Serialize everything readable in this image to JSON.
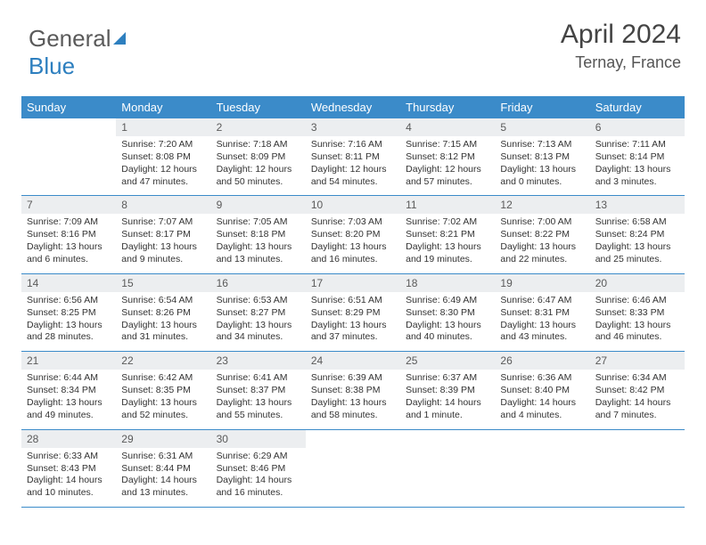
{
  "brand": {
    "part1": "General",
    "part2": "Blue"
  },
  "title": {
    "month_year": "April 2024",
    "location": "Ternay, France"
  },
  "style": {
    "accent_color": "#3b8bc9",
    "daynum_bg": "#eceef0",
    "text_color": "#333333",
    "background": "#ffffff",
    "head_fontsize": 13,
    "body_fontsize": 10.5
  },
  "day_headers": [
    "Sunday",
    "Monday",
    "Tuesday",
    "Wednesday",
    "Thursday",
    "Friday",
    "Saturday"
  ],
  "weeks": [
    {
      "nums": [
        "",
        "1",
        "2",
        "3",
        "4",
        "5",
        "6"
      ],
      "cells": [
        null,
        {
          "sunrise": "Sunrise: 7:20 AM",
          "sunset": "Sunset: 8:08 PM",
          "day1": "Daylight: 12 hours",
          "day2": "and 47 minutes."
        },
        {
          "sunrise": "Sunrise: 7:18 AM",
          "sunset": "Sunset: 8:09 PM",
          "day1": "Daylight: 12 hours",
          "day2": "and 50 minutes."
        },
        {
          "sunrise": "Sunrise: 7:16 AM",
          "sunset": "Sunset: 8:11 PM",
          "day1": "Daylight: 12 hours",
          "day2": "and 54 minutes."
        },
        {
          "sunrise": "Sunrise: 7:15 AM",
          "sunset": "Sunset: 8:12 PM",
          "day1": "Daylight: 12 hours",
          "day2": "and 57 minutes."
        },
        {
          "sunrise": "Sunrise: 7:13 AM",
          "sunset": "Sunset: 8:13 PM",
          "day1": "Daylight: 13 hours",
          "day2": "and 0 minutes."
        },
        {
          "sunrise": "Sunrise: 7:11 AM",
          "sunset": "Sunset: 8:14 PM",
          "day1": "Daylight: 13 hours",
          "day2": "and 3 minutes."
        }
      ]
    },
    {
      "nums": [
        "7",
        "8",
        "9",
        "10",
        "11",
        "12",
        "13"
      ],
      "cells": [
        {
          "sunrise": "Sunrise: 7:09 AM",
          "sunset": "Sunset: 8:16 PM",
          "day1": "Daylight: 13 hours",
          "day2": "and 6 minutes."
        },
        {
          "sunrise": "Sunrise: 7:07 AM",
          "sunset": "Sunset: 8:17 PM",
          "day1": "Daylight: 13 hours",
          "day2": "and 9 minutes."
        },
        {
          "sunrise": "Sunrise: 7:05 AM",
          "sunset": "Sunset: 8:18 PM",
          "day1": "Daylight: 13 hours",
          "day2": "and 13 minutes."
        },
        {
          "sunrise": "Sunrise: 7:03 AM",
          "sunset": "Sunset: 8:20 PM",
          "day1": "Daylight: 13 hours",
          "day2": "and 16 minutes."
        },
        {
          "sunrise": "Sunrise: 7:02 AM",
          "sunset": "Sunset: 8:21 PM",
          "day1": "Daylight: 13 hours",
          "day2": "and 19 minutes."
        },
        {
          "sunrise": "Sunrise: 7:00 AM",
          "sunset": "Sunset: 8:22 PM",
          "day1": "Daylight: 13 hours",
          "day2": "and 22 minutes."
        },
        {
          "sunrise": "Sunrise: 6:58 AM",
          "sunset": "Sunset: 8:24 PM",
          "day1": "Daylight: 13 hours",
          "day2": "and 25 minutes."
        }
      ]
    },
    {
      "nums": [
        "14",
        "15",
        "16",
        "17",
        "18",
        "19",
        "20"
      ],
      "cells": [
        {
          "sunrise": "Sunrise: 6:56 AM",
          "sunset": "Sunset: 8:25 PM",
          "day1": "Daylight: 13 hours",
          "day2": "and 28 minutes."
        },
        {
          "sunrise": "Sunrise: 6:54 AM",
          "sunset": "Sunset: 8:26 PM",
          "day1": "Daylight: 13 hours",
          "day2": "and 31 minutes."
        },
        {
          "sunrise": "Sunrise: 6:53 AM",
          "sunset": "Sunset: 8:27 PM",
          "day1": "Daylight: 13 hours",
          "day2": "and 34 minutes."
        },
        {
          "sunrise": "Sunrise: 6:51 AM",
          "sunset": "Sunset: 8:29 PM",
          "day1": "Daylight: 13 hours",
          "day2": "and 37 minutes."
        },
        {
          "sunrise": "Sunrise: 6:49 AM",
          "sunset": "Sunset: 8:30 PM",
          "day1": "Daylight: 13 hours",
          "day2": "and 40 minutes."
        },
        {
          "sunrise": "Sunrise: 6:47 AM",
          "sunset": "Sunset: 8:31 PM",
          "day1": "Daylight: 13 hours",
          "day2": "and 43 minutes."
        },
        {
          "sunrise": "Sunrise: 6:46 AM",
          "sunset": "Sunset: 8:33 PM",
          "day1": "Daylight: 13 hours",
          "day2": "and 46 minutes."
        }
      ]
    },
    {
      "nums": [
        "21",
        "22",
        "23",
        "24",
        "25",
        "26",
        "27"
      ],
      "cells": [
        {
          "sunrise": "Sunrise: 6:44 AM",
          "sunset": "Sunset: 8:34 PM",
          "day1": "Daylight: 13 hours",
          "day2": "and 49 minutes."
        },
        {
          "sunrise": "Sunrise: 6:42 AM",
          "sunset": "Sunset: 8:35 PM",
          "day1": "Daylight: 13 hours",
          "day2": "and 52 minutes."
        },
        {
          "sunrise": "Sunrise: 6:41 AM",
          "sunset": "Sunset: 8:37 PM",
          "day1": "Daylight: 13 hours",
          "day2": "and 55 minutes."
        },
        {
          "sunrise": "Sunrise: 6:39 AM",
          "sunset": "Sunset: 8:38 PM",
          "day1": "Daylight: 13 hours",
          "day2": "and 58 minutes."
        },
        {
          "sunrise": "Sunrise: 6:37 AM",
          "sunset": "Sunset: 8:39 PM",
          "day1": "Daylight: 14 hours",
          "day2": "and 1 minute."
        },
        {
          "sunrise": "Sunrise: 6:36 AM",
          "sunset": "Sunset: 8:40 PM",
          "day1": "Daylight: 14 hours",
          "day2": "and 4 minutes."
        },
        {
          "sunrise": "Sunrise: 6:34 AM",
          "sunset": "Sunset: 8:42 PM",
          "day1": "Daylight: 14 hours",
          "day2": "and 7 minutes."
        }
      ]
    },
    {
      "nums": [
        "28",
        "29",
        "30",
        "",
        "",
        "",
        ""
      ],
      "cells": [
        {
          "sunrise": "Sunrise: 6:33 AM",
          "sunset": "Sunset: 8:43 PM",
          "day1": "Daylight: 14 hours",
          "day2": "and 10 minutes."
        },
        {
          "sunrise": "Sunrise: 6:31 AM",
          "sunset": "Sunset: 8:44 PM",
          "day1": "Daylight: 14 hours",
          "day2": "and 13 minutes."
        },
        {
          "sunrise": "Sunrise: 6:29 AM",
          "sunset": "Sunset: 8:46 PM",
          "day1": "Daylight: 14 hours",
          "day2": "and 16 minutes."
        },
        null,
        null,
        null,
        null
      ]
    }
  ]
}
